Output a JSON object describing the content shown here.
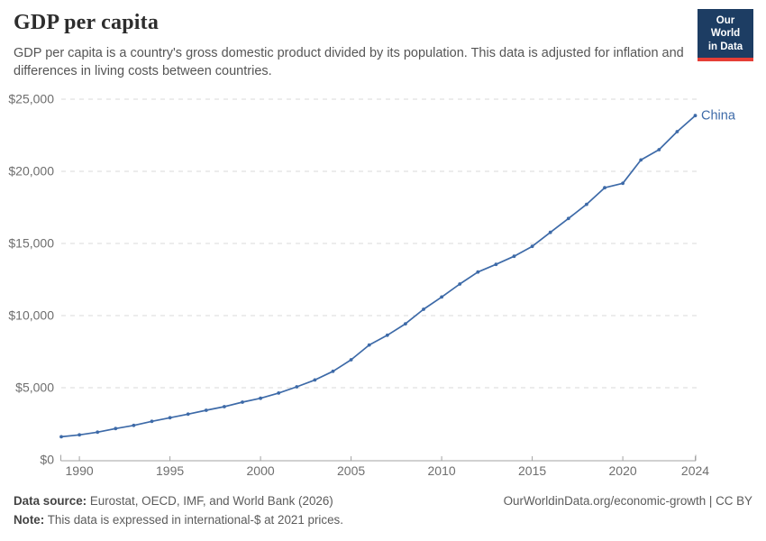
{
  "header": {
    "title": "GDP per capita",
    "subtitle": "GDP per capita is a country's gross domestic product divided by its population. This data is adjusted for inflation and differences in living costs between countries."
  },
  "logo": {
    "line1": "Our World",
    "line2": "in Data",
    "bg_color": "#1d3d63",
    "accent_color": "#e63e36"
  },
  "chart_data": {
    "type": "line",
    "title": "GDP per capita",
    "xlabel": "",
    "ylabel": "",
    "xlim": [
      1989,
      2024.2
    ],
    "ylim": [
      0,
      25000
    ],
    "grid": "horizontal-dashed",
    "legend_position": "end-of-line",
    "line_color": "#3d6aa8",
    "grid_color": "#d9d9d9",
    "axis_color": "#a3a3a3",
    "tick_label_color": "#6e6e6e",
    "series": [
      {
        "name": "China",
        "color": "#3d6aa8",
        "x": [
          1989,
          1990,
          1991,
          1992,
          1993,
          1994,
          1995,
          1996,
          1997,
          1998,
          1999,
          2000,
          2001,
          2002,
          2003,
          2004,
          2005,
          2006,
          2007,
          2008,
          2009,
          2010,
          2011,
          2012,
          2013,
          2014,
          2015,
          2016,
          2017,
          2018,
          2019,
          2020,
          2021,
          2022,
          2023,
          2024
        ],
        "values": [
          1600,
          1730,
          1920,
          2170,
          2390,
          2670,
          2920,
          3170,
          3440,
          3690,
          4000,
          4270,
          4630,
          5060,
          5540,
          6140,
          6940,
          7960,
          8640,
          9430,
          10440,
          11290,
          12190,
          13020,
          13550,
          14110,
          14800,
          15770,
          16730,
          17710,
          18860,
          19170,
          20790,
          21500,
          22750,
          23860
        ]
      }
    ],
    "yticks": [
      {
        "value": 0,
        "label": "$0"
      },
      {
        "value": 5000,
        "label": "$5,000"
      },
      {
        "value": 10000,
        "label": "$10,000"
      },
      {
        "value": 15000,
        "label": "$15,000"
      },
      {
        "value": 20000,
        "label": "$20,000"
      },
      {
        "value": 25000,
        "label": "$25,000"
      }
    ],
    "xticks": [
      {
        "value": 1990,
        "label": "1990"
      },
      {
        "value": 1995,
        "label": "1995"
      },
      {
        "value": 2000,
        "label": "2000"
      },
      {
        "value": 2005,
        "label": "2005"
      },
      {
        "value": 2010,
        "label": "2010"
      },
      {
        "value": 2015,
        "label": "2015"
      },
      {
        "value": 2020,
        "label": "2020"
      },
      {
        "value": 2024,
        "label": "2024"
      }
    ]
  },
  "footer": {
    "data_source_label": "Data source:",
    "data_source_text": " Eurostat, OECD, IMF, and World Bank (2026)",
    "link_text": "OurWorldinData.org/economic-growth | CC BY",
    "note_label": "Note:",
    "note_text": " This data is expressed in international-$ at 2021 prices."
  }
}
